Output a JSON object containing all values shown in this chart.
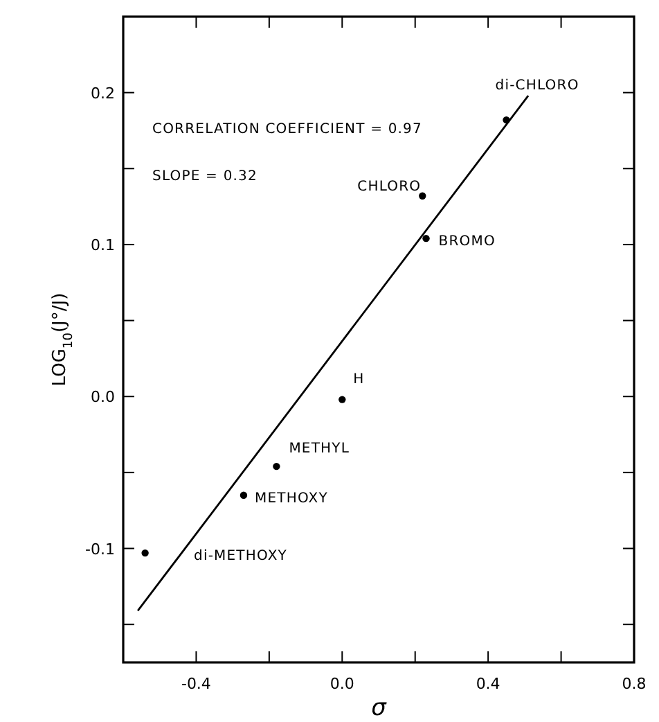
{
  "chart_data": {
    "type": "scatter",
    "xlabel": "σ",
    "ylabel": "LOG$_{10}$(J°/J)",
    "xlim": [
      -0.6,
      0.8
    ],
    "ylim": [
      -0.175,
      0.25
    ],
    "xticks": [
      {
        "value": -0.6,
        "label": null
      },
      -0.4,
      {
        "value": -0.2,
        "label": null
      },
      {
        "value": 0,
        "label": "0.0"
      },
      {
        "value": 0.2,
        "label": null
      },
      0.4,
      {
        "value": 0.6,
        "label": null
      },
      0.8
    ],
    "yticks": [
      {
        "value": -0.15,
        "label": null
      },
      -0.1,
      {
        "value": -0.05,
        "label": null
      },
      {
        "value": 0,
        "label": "0.0"
      },
      {
        "value": 0.05,
        "label": null
      },
      0.1,
      {
        "value": 0.15,
        "label": null
      },
      0.2
    ],
    "grid": false,
    "series": [
      {
        "type": "scatter",
        "color": "#000000",
        "marker": "circle",
        "x": [
          0.45,
          0.22,
          0.23,
          0.0,
          -0.18,
          -0.27,
          -0.54
        ],
        "values": [
          0.182,
          0.132,
          0.104,
          -0.002,
          -0.046,
          -0.065,
          -0.103
        ]
      },
      {
        "type": "line",
        "color": "#000000",
        "marker": "none",
        "line_style": "solid",
        "x": [
          -0.56,
          0.51
        ],
        "values": [
          -0.141,
          0.198
        ]
      }
    ],
    "annotations": [
      {
        "text": "di-CHLORO",
        "x": 0.45,
        "y": 0.182
      },
      {
        "text": "CHLORO",
        "x": 0.22,
        "y": 0.132
      },
      {
        "text": "BROMO",
        "x": 0.23,
        "y": 0.104
      },
      {
        "text": "H",
        "x": 0.0,
        "y": -0.002
      },
      {
        "text": "METHYL",
        "x": -0.18,
        "y": -0.046
      },
      {
        "text": "METHOXY",
        "x": -0.27,
        "y": -0.065
      },
      "di-METHOXY",
      "CORRELATION  COEFFICIENT = 0.97",
      "SLOPE = 0.32"
    ]
  }
}
